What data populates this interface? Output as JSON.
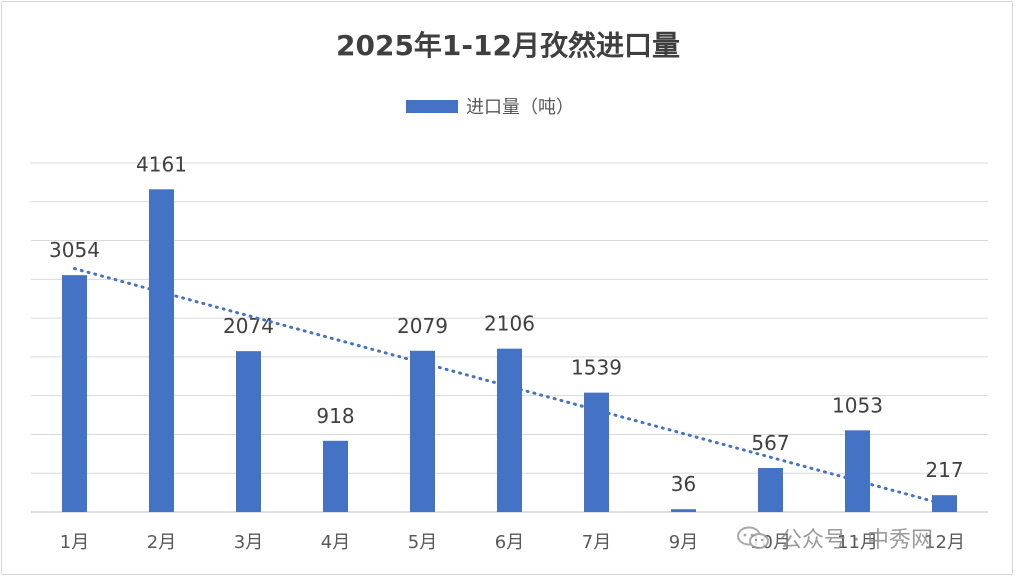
{
  "colors": {
    "bar": "#4472c4",
    "trend": "#4472c4",
    "grid": "#d9d9d9",
    "text": "#404040"
  },
  "watermark": {
    "icon": "wechat-icon",
    "text": "公众号 · 中秀网"
  },
  "chart_data": {
    "type": "bar",
    "title": "2025年1-12月孜然进口量",
    "categories": [
      "1月",
      "2月",
      "3月",
      "4月",
      "5月",
      "6月",
      "7月",
      "9月",
      "10月",
      "11月",
      "12月"
    ],
    "series": [
      {
        "name": "进口量（吨）",
        "values": [
          3054,
          4161,
          2074,
          918,
          2079,
          2106,
          1539,
          36,
          567,
          1053,
          217
        ]
      }
    ],
    "trendline": {
      "type": "linear",
      "style": "dotted"
    },
    "ylim": [
      0,
      4500
    ],
    "ytick_step": 500,
    "y_tick_labels_shown": false,
    "grid": true,
    "legend": "top-center",
    "data_labels": true
  }
}
